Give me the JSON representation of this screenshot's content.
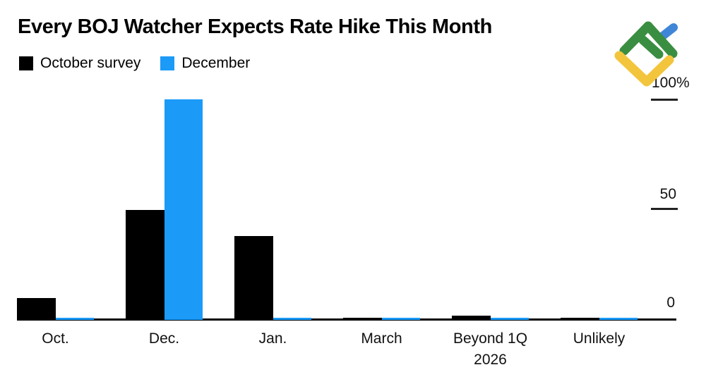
{
  "title": "Every BOJ Watcher Expects Rate Hike This Month",
  "legend": {
    "items": [
      {
        "label": "October survey",
        "color": "#000000"
      },
      {
        "label": "December",
        "color": "#1b9af8"
      }
    ]
  },
  "y_axis": {
    "ticks": [
      {
        "label": "100%",
        "value": 100
      },
      {
        "label": "50",
        "value": 50
      },
      {
        "label": "0",
        "value": 0
      }
    ]
  },
  "chart_data": {
    "type": "bar",
    "title": "Every BOJ Watcher Expects Rate Hike This Month",
    "categories": [
      "Oct.",
      "Dec.",
      "Jan.",
      "March",
      "Beyond 1Q\n2026",
      "Unlikely"
    ],
    "series": [
      {
        "name": "October survey",
        "color": "#000000",
        "values": [
          10,
          50,
          38,
          0.5,
          2,
          1
        ]
      },
      {
        "name": "December",
        "color": "#1b9af8",
        "values": [
          0.5,
          100,
          0.5,
          0.5,
          0.5,
          0.5
        ]
      }
    ],
    "unit": "%",
    "ylim": [
      0,
      100
    ],
    "yticks": [
      0,
      50,
      100
    ],
    "ytick_labels": [
      "0",
      "50",
      "100%"
    ],
    "legend_position": "top-left",
    "grid": false
  },
  "logo": {
    "icon": "litefinance-logo",
    "colors": {
      "green": "#3a8e41",
      "blue": "#4086d8",
      "yellow": "#f3c53d"
    }
  }
}
